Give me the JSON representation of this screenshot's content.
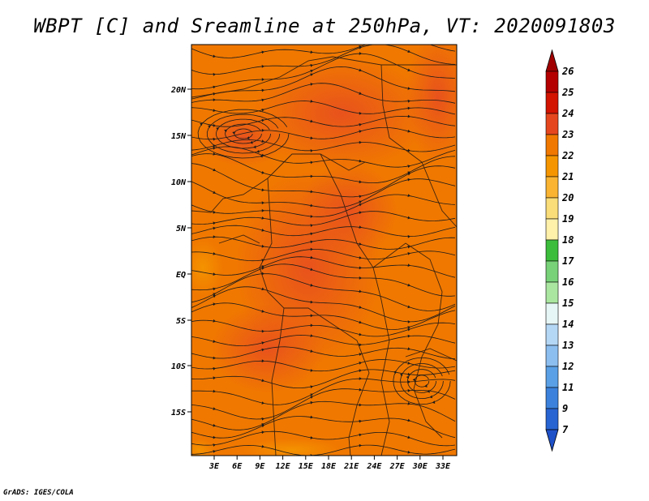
{
  "title": "WBPT [C] and Sreamline at 250hPa, VT: 2020091803",
  "credit": "GrADS: IGES/COLA",
  "map": {
    "lat_ticks": [
      "20N",
      "15N",
      "10N",
      "5N",
      "EQ",
      "5S",
      "10S",
      "15S"
    ],
    "lon_ticks": [
      "3E",
      "6E",
      "9E",
      "12E",
      "15E",
      "18E",
      "21E",
      "24E",
      "27E",
      "30E",
      "33E"
    ],
    "base_color": "#f07800",
    "warm_color": "#e8501e"
  },
  "colorbar": {
    "labels": [
      "26",
      "25",
      "24",
      "23",
      "22",
      "21",
      "20",
      "19",
      "18",
      "17",
      "16",
      "15",
      "14",
      "13",
      "12",
      "11",
      "9",
      "7"
    ],
    "colors": [
      "#b40000",
      "#d21400",
      "#e6461e",
      "#f07800",
      "#f59600",
      "#fab432",
      "#fadc78",
      "#fff0aa",
      "#3cbe3c",
      "#78d278",
      "#aae6a0",
      "#e6f5f5",
      "#b4d7f5",
      "#8cbef0",
      "#5aa0e6",
      "#3c82dc",
      "#2864d2"
    ],
    "top_cap_color": "#a00000",
    "bottom_cap_color": "#1e50c8"
  }
}
